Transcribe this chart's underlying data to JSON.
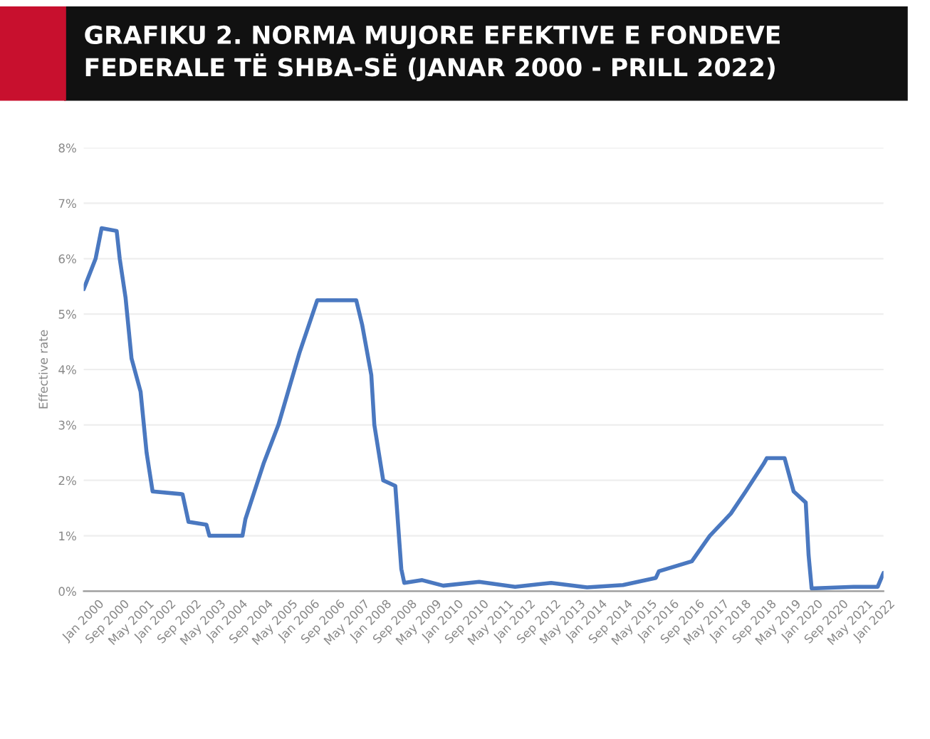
{
  "chart_data": {
    "type": "line",
    "title": "GRAFIKU 2. NORMA MUJORE EFEKTIVE E FONDEVE FEDERALE TË SHBA-SË (JANAR 2000 - PRILL 2022)",
    "ylabel": "Effective rate",
    "x": [
      "2000-01",
      "2000-05",
      "2000-07",
      "2000-12",
      "2001-01",
      "2001-03",
      "2001-05",
      "2001-08",
      "2001-10",
      "2001-12",
      "2002-10",
      "2002-12",
      "2003-06",
      "2003-07",
      "2004-06",
      "2004-07",
      "2005-01",
      "2005-06",
      "2006-01",
      "2006-07",
      "2007-08",
      "2007-10",
      "2008-01",
      "2008-02",
      "2008-05",
      "2008-09",
      "2008-11",
      "2008-12",
      "2009-06",
      "2010-01",
      "2011-01",
      "2012-01",
      "2013-01",
      "2014-01",
      "2015-01",
      "2015-12",
      "2016-01",
      "2016-12",
      "2017-06",
      "2018-01",
      "2018-06",
      "2018-12",
      "2019-01",
      "2019-07",
      "2019-10",
      "2020-02",
      "2020-03",
      "2020-04",
      "2021-06",
      "2022-02",
      "2022-03",
      "2022-04"
    ],
    "series": [
      {
        "color": "#4a78c0",
        "values": [
          5.45,
          6.0,
          6.55,
          6.5,
          6.0,
          5.3,
          4.2,
          3.6,
          2.5,
          1.8,
          1.75,
          1.25,
          1.2,
          1.0,
          1.0,
          1.3,
          2.3,
          3.0,
          4.3,
          5.25,
          5.25,
          4.8,
          3.9,
          3.0,
          2.0,
          1.9,
          0.4,
          0.15,
          0.2,
          0.1,
          0.17,
          0.08,
          0.15,
          0.07,
          0.11,
          0.24,
          0.36,
          0.54,
          1.0,
          1.4,
          1.8,
          2.3,
          2.4,
          2.4,
          1.8,
          1.6,
          0.65,
          0.05,
          0.08,
          0.08,
          0.2,
          0.33
        ]
      }
    ],
    "xlim": [
      "2000-01",
      "2022-04"
    ],
    "xticks": [
      {
        "value": "2000-01",
        "label": "Jan 2000"
      },
      {
        "value": "2000-09",
        "label": "Sep 2000"
      },
      {
        "value": "2001-05",
        "label": "May 2001"
      },
      {
        "value": "2002-01",
        "label": "Jan 2002"
      },
      {
        "value": "2002-09",
        "label": "Sep 2002"
      },
      {
        "value": "2003-05",
        "label": "May 2003"
      },
      {
        "value": "2004-01",
        "label": "Jan 2004"
      },
      {
        "value": "2004-09",
        "label": "Sep 2004"
      },
      {
        "value": "2005-05",
        "label": "May 2005"
      },
      {
        "value": "2006-01",
        "label": "Jan 2006"
      },
      {
        "value": "2006-09",
        "label": "Sep 2006"
      },
      {
        "value": "2007-05",
        "label": "May 2007"
      },
      {
        "value": "2008-01",
        "label": "Jan 2008"
      },
      {
        "value": "2008-09",
        "label": "Sep 2008"
      },
      {
        "value": "2009-05",
        "label": "May 2009"
      },
      {
        "value": "2010-01",
        "label": "Jan 2010"
      },
      {
        "value": "2010-09",
        "label": "Sep 2010"
      },
      {
        "value": "2011-05",
        "label": "May 2011"
      },
      {
        "value": "2012-01",
        "label": "Jan 2012"
      },
      {
        "value": "2012-09",
        "label": "Sep 2012"
      },
      {
        "value": "2013-05",
        "label": "May 2013"
      },
      {
        "value": "2014-01",
        "label": "Jan 2014"
      },
      {
        "value": "2014-09",
        "label": "Sep 2014"
      },
      {
        "value": "2015-05",
        "label": "May 2015"
      },
      {
        "value": "2016-01",
        "label": "Jan 2016"
      },
      {
        "value": "2016-09",
        "label": "Sep 2016"
      },
      {
        "value": "2017-05",
        "label": "May 2017"
      },
      {
        "value": "2018-01",
        "label": "Jan 2018"
      },
      {
        "value": "2018-09",
        "label": "Sep 2018"
      },
      {
        "value": "2019-05",
        "label": "May 2019"
      },
      {
        "value": "2020-01",
        "label": "Jan 2020"
      },
      {
        "value": "2020-09",
        "label": "Sep 2020"
      },
      {
        "value": "2021-05",
        "label": "May 2021"
      },
      {
        "value": "2022-01",
        "label": "Jan 2022"
      }
    ],
    "ylim": [
      0,
      8
    ],
    "yticks": [
      {
        "value": 0,
        "label": "0%"
      },
      {
        "value": 1,
        "label": "1%"
      },
      {
        "value": 2,
        "label": "2%"
      },
      {
        "value": 3,
        "label": "3%"
      },
      {
        "value": 4,
        "label": "4%"
      },
      {
        "value": 5,
        "label": "5%"
      },
      {
        "value": 6,
        "label": "6%"
      },
      {
        "value": 7,
        "label": "7%"
      },
      {
        "value": 8,
        "label": "8%"
      }
    ],
    "grid": "y",
    "marker": "none",
    "line_style": "solid",
    "legend": false
  }
}
